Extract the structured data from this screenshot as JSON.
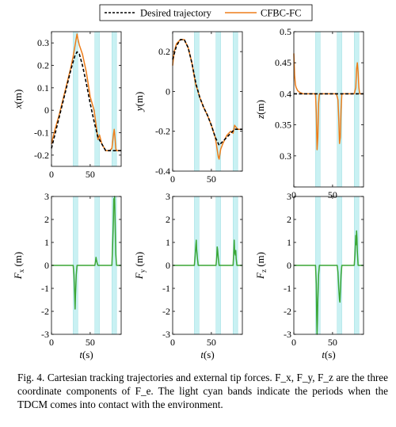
{
  "legend": {
    "desired_label": "Desired trajectory",
    "actual_label": "CFBC-FC"
  },
  "caption": {
    "prefix": "Fig. 4.",
    "text": "Cartesian tracking trajectories and external tip forces. F_x, F_y, F_z are the three coordinate components of F_e. The light cyan bands indicate the periods when the TDCM comes into contact with the environment."
  },
  "colors": {
    "desired": "#000000",
    "actual": "#ED7D1A",
    "force": "#3AA635",
    "contact_band": "#C9F1F3"
  },
  "contact_periods_s": [
    [
      28,
      34
    ],
    [
      56,
      62
    ],
    [
      78,
      84
    ]
  ],
  "chart_data": [
    {
      "type": "line",
      "id": "x",
      "ylabel": "x(m)",
      "xlabel": "",
      "xlim": [
        0,
        90
      ],
      "ylim": [
        -0.25,
        0.35
      ],
      "xticks": [
        0,
        50
      ],
      "yticks": [
        -0.2,
        -0.1,
        0,
        0.1,
        0.2,
        0.3
      ],
      "ytick_labels": [
        "-0.2",
        "-0.1",
        "0",
        "0.1",
        "0.2",
        "0.3"
      ],
      "series": [
        {
          "name": "Desired trajectory",
          "style": "dashed",
          "x": [
            0,
            5,
            10,
            15,
            20,
            25,
            30,
            33,
            36,
            40,
            45,
            50,
            55,
            60,
            65,
            70,
            75,
            80,
            85,
            90
          ],
          "y": [
            -0.17,
            -0.1,
            -0.03,
            0.04,
            0.11,
            0.18,
            0.24,
            0.26,
            0.25,
            0.2,
            0.12,
            0.03,
            -0.05,
            -0.12,
            -0.15,
            -0.18,
            -0.18,
            -0.18,
            -0.18,
            -0.18
          ]
        },
        {
          "name": "CFBC-FC",
          "style": "solid",
          "x": [
            0,
            2,
            5,
            10,
            15,
            20,
            25,
            28,
            30,
            32,
            33,
            34,
            36,
            40,
            45,
            50,
            55,
            57,
            60,
            62,
            65,
            70,
            75,
            78,
            80,
            81,
            82,
            83,
            84,
            86,
            90
          ],
          "y": [
            -0.15,
            -0.12,
            -0.08,
            -0.02,
            0.05,
            0.12,
            0.19,
            0.24,
            0.28,
            0.32,
            0.34,
            0.32,
            0.29,
            0.25,
            0.17,
            0.06,
            0.0,
            -0.05,
            -0.13,
            -0.11,
            -0.15,
            -0.18,
            -0.18,
            -0.17,
            -0.11,
            -0.085,
            -0.12,
            -0.17,
            -0.18,
            -0.18,
            -0.18
          ]
        }
      ]
    },
    {
      "type": "line",
      "id": "y",
      "ylabel": "y(m)",
      "xlabel": "",
      "xlim": [
        0,
        90
      ],
      "ylim": [
        -0.4,
        0.3
      ],
      "xticks": [
        0,
        50
      ],
      "yticks": [
        -0.4,
        -0.2,
        0,
        0.2
      ],
      "ytick_labels": [
        "-0.4",
        "-0.2",
        "0",
        "0.2"
      ],
      "series": [
        {
          "name": "Desired trajectory",
          "style": "dashed",
          "x": [
            0,
            5,
            10,
            15,
            20,
            25,
            30,
            35,
            40,
            45,
            50,
            55,
            60,
            65,
            70,
            75,
            80,
            85,
            90
          ],
          "y": [
            0.16,
            0.23,
            0.26,
            0.26,
            0.22,
            0.14,
            0.04,
            -0.03,
            -0.08,
            -0.12,
            -0.17,
            -0.23,
            -0.27,
            -0.25,
            -0.23,
            -0.21,
            -0.19,
            -0.19,
            -0.19
          ]
        },
        {
          "name": "CFBC-FC",
          "style": "solid",
          "x": [
            0,
            2,
            5,
            10,
            15,
            20,
            25,
            30,
            32,
            35,
            40,
            45,
            50,
            55,
            57,
            59,
            60,
            62,
            65,
            70,
            75,
            78,
            80,
            82,
            84,
            90
          ],
          "y": [
            0.13,
            0.2,
            0.24,
            0.26,
            0.26,
            0.22,
            0.14,
            0.03,
            0.01,
            -0.03,
            -0.08,
            -0.12,
            -0.17,
            -0.23,
            -0.28,
            -0.33,
            -0.34,
            -0.29,
            -0.26,
            -0.22,
            -0.2,
            -0.21,
            -0.17,
            -0.18,
            -0.19,
            -0.19
          ]
        }
      ]
    },
    {
      "type": "line",
      "id": "z",
      "ylabel": "z(m)",
      "xlabel": "",
      "xlim": [
        0,
        90
      ],
      "ylim": [
        0.25,
        0.5
      ],
      "xticks": [
        0,
        50
      ],
      "yticks": [
        0.25,
        0.3,
        0.35,
        0.4,
        0.45,
        0.5
      ],
      "ytick_labels": [
        "",
        "0.3",
        "0.35",
        "0.4",
        "0.45",
        "0.5"
      ],
      "series": [
        {
          "name": "Desired trajectory",
          "style": "dashed",
          "x": [
            0,
            90
          ],
          "y": [
            0.4,
            0.4
          ]
        },
        {
          "name": "CFBC-FC",
          "style": "solid",
          "x": [
            0,
            1,
            2,
            3,
            5,
            8,
            12,
            20,
            28,
            29,
            30,
            31,
            32,
            33,
            35,
            40,
            50,
            55,
            57,
            58,
            59,
            60,
            61,
            62,
            65,
            70,
            75,
            78,
            80,
            81,
            82,
            83,
            84,
            85,
            87,
            90
          ],
          "y": [
            0.465,
            0.43,
            0.415,
            0.41,
            0.405,
            0.402,
            0.4,
            0.4,
            0.4,
            0.37,
            0.31,
            0.33,
            0.385,
            0.4,
            0.4,
            0.4,
            0.4,
            0.4,
            0.39,
            0.36,
            0.32,
            0.33,
            0.375,
            0.4,
            0.4,
            0.4,
            0.4,
            0.4,
            0.41,
            0.44,
            0.45,
            0.435,
            0.41,
            0.4,
            0.4,
            0.4
          ]
        }
      ]
    },
    {
      "type": "line",
      "id": "Fx",
      "ylabel": "F",
      "ylabel_sub": "x",
      "ylabel_unit": " (m)",
      "xlabel": "t(s)",
      "xlim": [
        0,
        90
      ],
      "ylim": [
        -3,
        3
      ],
      "xticks": [
        0,
        50
      ],
      "yticks": [
        -3,
        -2,
        -1,
        0,
        1,
        2,
        3
      ],
      "ytick_labels": [
        "-3",
        "-2",
        "-1",
        "0",
        "1",
        "2",
        "3"
      ],
      "series": [
        {
          "name": "Fx",
          "style": "solid",
          "x": [
            0,
            28,
            29,
            30,
            30.5,
            31,
            32,
            33,
            34,
            56,
            57,
            57.5,
            58,
            59,
            60,
            78,
            79,
            80,
            80.5,
            81,
            81.5,
            82,
            83,
            84,
            90
          ],
          "y": [
            0,
            0,
            -0.4,
            -1.3,
            -1.9,
            -1.3,
            -0.4,
            0,
            0,
            0,
            0.2,
            0.35,
            0.25,
            0.1,
            0,
            0,
            0.9,
            2.0,
            2.9,
            2.6,
            3.0,
            2.2,
            0.5,
            0,
            0
          ]
        }
      ]
    },
    {
      "type": "line",
      "id": "Fy",
      "ylabel": "F",
      "ylabel_sub": "y",
      "ylabel_unit": " (m)",
      "xlabel": "t(s)",
      "xlim": [
        0,
        90
      ],
      "ylim": [
        -3,
        3
      ],
      "xticks": [
        0,
        50
      ],
      "yticks": [
        -3,
        -2,
        -1,
        0,
        1,
        2,
        3
      ],
      "ytick_labels": [
        "-3",
        "-2",
        "-1",
        "0",
        "1",
        "2",
        "3"
      ],
      "series": [
        {
          "name": "Fy",
          "style": "solid",
          "x": [
            0,
            28,
            29,
            30,
            30.5,
            31,
            32,
            33,
            56,
            57,
            57.5,
            58,
            59,
            60,
            78,
            79,
            79.5,
            80,
            81,
            81.5,
            82,
            83,
            90
          ],
          "y": [
            0,
            0,
            0.4,
            0.9,
            1.1,
            0.7,
            0.3,
            0,
            0,
            0.4,
            0.8,
            0.7,
            0.3,
            0,
            0,
            0.6,
            1.1,
            0.6,
            0.45,
            0.65,
            0.3,
            0,
            0
          ]
        }
      ]
    },
    {
      "type": "line",
      "id": "Fz",
      "ylabel": "F",
      "ylabel_sub": "z",
      "ylabel_unit": " (m)",
      "xlabel": "t(s)",
      "xlim": [
        0,
        90
      ],
      "ylim": [
        -3,
        3
      ],
      "xticks": [
        0,
        50
      ],
      "yticks": [
        -3,
        -2,
        -1,
        0,
        1,
        2,
        3
      ],
      "ytick_labels": [
        "-3",
        "-2",
        "-1",
        "0",
        "1",
        "2",
        "3"
      ],
      "series": [
        {
          "name": "Fz",
          "style": "solid",
          "x": [
            0,
            28,
            29,
            29.5,
            30,
            30.5,
            31,
            32,
            33,
            56,
            57,
            58,
            59,
            59.5,
            60,
            61,
            62,
            78,
            79,
            80,
            80.5,
            81,
            81.5,
            82,
            83,
            90
          ],
          "y": [
            0,
            0,
            -0.8,
            -2.2,
            -3.0,
            -2.4,
            -1.5,
            -0.4,
            0,
            0,
            -0.3,
            -1.0,
            -1.5,
            -1.6,
            -1.2,
            -0.4,
            0,
            0,
            0.5,
            1.3,
            0.9,
            1.5,
            1.2,
            0.6,
            0,
            0
          ]
        }
      ]
    }
  ]
}
